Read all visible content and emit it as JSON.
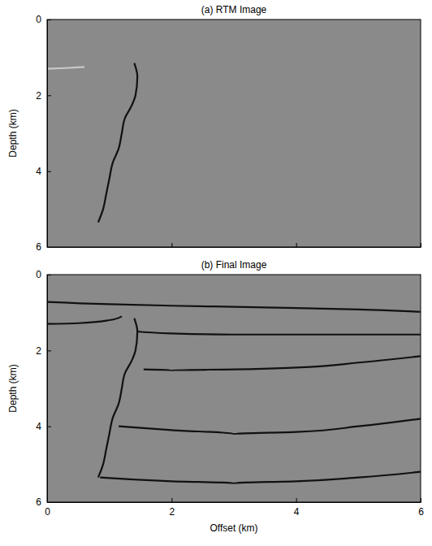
{
  "chart_data": [
    {
      "type": "line",
      "title": "(a) RTM Image",
      "ylabel": "Depth (km)",
      "xlim": [
        0,
        6
      ],
      "ylim": [
        6,
        0
      ],
      "xticks": [
        0,
        2,
        4,
        6
      ],
      "yticks": [
        0,
        2,
        4,
        6
      ],
      "tick_labels": "y",
      "series": [
        {
          "color": "#c8c8c8",
          "x": [
            0,
            0.3,
            0.6
          ],
          "values": [
            1.3,
            1.28,
            1.25
          ]
        },
        {
          "color": "#111111",
          "x": [
            1.4,
            1.45,
            1.42,
            1.35,
            1.25,
            1.2,
            1.15,
            1.05,
            1.0,
            0.95,
            0.9,
            0.82
          ],
          "values": [
            1.15,
            1.5,
            2.0,
            2.3,
            2.6,
            3.0,
            3.4,
            3.8,
            4.2,
            4.6,
            5.0,
            5.35
          ]
        }
      ]
    },
    {
      "type": "line",
      "title": "(b) Final Image",
      "xlabel": "Offset (km)",
      "ylabel": "Depth (km)",
      "xlim": [
        0,
        6
      ],
      "ylim": [
        6,
        0
      ],
      "xticks": [
        0,
        2,
        4,
        6
      ],
      "yticks": [
        0,
        2,
        4,
        6
      ],
      "series": [
        {
          "color": "#111111",
          "x": [
            0,
            1,
            2,
            3,
            4,
            5,
            6
          ],
          "values": [
            0.72,
            0.78,
            0.82,
            0.85,
            0.88,
            0.92,
            0.98
          ]
        },
        {
          "color": "#111111",
          "x": [
            0,
            0.5,
            1.0,
            1.2
          ],
          "values": [
            1.3,
            1.28,
            1.2,
            1.1
          ]
        },
        {
          "color": "#111111",
          "x": [
            1.45,
            2,
            3,
            4,
            5,
            6
          ],
          "values": [
            1.5,
            1.55,
            1.58,
            1.58,
            1.58,
            1.58
          ]
        },
        {
          "color": "#111111",
          "x": [
            1.55,
            2,
            3,
            4,
            5,
            6
          ],
          "values": [
            2.5,
            2.52,
            2.5,
            2.45,
            2.32,
            2.15
          ]
        },
        {
          "color": "#111111",
          "x": [
            1.15,
            2,
            3,
            4,
            5,
            6
          ],
          "values": [
            4.0,
            4.1,
            4.2,
            4.15,
            4.0,
            3.8
          ]
        },
        {
          "color": "#111111",
          "x": [
            0.85,
            2,
            3,
            4,
            5,
            6
          ],
          "values": [
            5.35,
            5.45,
            5.5,
            5.45,
            5.35,
            5.2
          ]
        },
        {
          "color": "#111111",
          "x": [
            1.4,
            1.45,
            1.42,
            1.35,
            1.25,
            1.2,
            1.15,
            1.05,
            1.0,
            0.95,
            0.9,
            0.82
          ],
          "values": [
            1.15,
            1.5,
            2.0,
            2.3,
            2.6,
            3.0,
            3.4,
            3.8,
            4.2,
            4.6,
            5.0,
            5.35
          ]
        }
      ]
    }
  ]
}
